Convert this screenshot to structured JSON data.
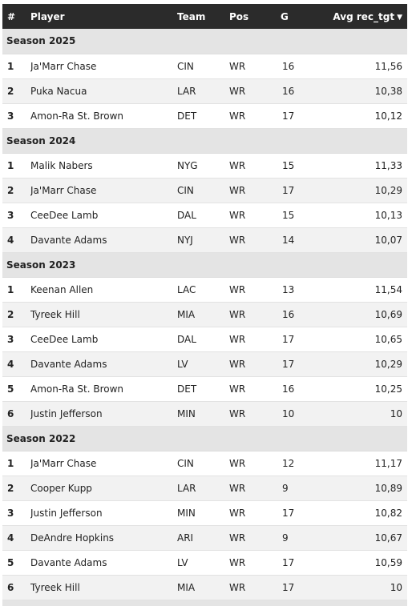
{
  "headers": {
    "rank": "#",
    "player": "Player",
    "team": "Team",
    "pos": "Pos",
    "g": "G",
    "avg": "Avg rec_tgt",
    "sort_icon": "sort-descending-icon"
  },
  "seasons": [
    {
      "label": "Season 2025",
      "rows": [
        {
          "rank": "1",
          "player": "Ja'Marr Chase",
          "team": "CIN",
          "pos": "WR",
          "g": "16",
          "avg": "11,56"
        },
        {
          "rank": "2",
          "player": "Puka Nacua",
          "team": "LAR",
          "pos": "WR",
          "g": "16",
          "avg": "10,38"
        },
        {
          "rank": "3",
          "player": "Amon-Ra St. Brown",
          "team": "DET",
          "pos": "WR",
          "g": "17",
          "avg": "10,12"
        }
      ]
    },
    {
      "label": "Season 2024",
      "rows": [
        {
          "rank": "1",
          "player": "Malik Nabers",
          "team": "NYG",
          "pos": "WR",
          "g": "15",
          "avg": "11,33"
        },
        {
          "rank": "2",
          "player": "Ja'Marr Chase",
          "team": "CIN",
          "pos": "WR",
          "g": "17",
          "avg": "10,29"
        },
        {
          "rank": "3",
          "player": "CeeDee Lamb",
          "team": "DAL",
          "pos": "WR",
          "g": "15",
          "avg": "10,13"
        },
        {
          "rank": "4",
          "player": "Davante Adams",
          "team": "NYJ",
          "pos": "WR",
          "g": "14",
          "avg": "10,07"
        }
      ]
    },
    {
      "label": "Season 2023",
      "rows": [
        {
          "rank": "1",
          "player": "Keenan Allen",
          "team": "LAC",
          "pos": "WR",
          "g": "13",
          "avg": "11,54"
        },
        {
          "rank": "2",
          "player": "Tyreek Hill",
          "team": "MIA",
          "pos": "WR",
          "g": "16",
          "avg": "10,69"
        },
        {
          "rank": "3",
          "player": "CeeDee Lamb",
          "team": "DAL",
          "pos": "WR",
          "g": "17",
          "avg": "10,65"
        },
        {
          "rank": "4",
          "player": "Davante Adams",
          "team": "LV",
          "pos": "WR",
          "g": "17",
          "avg": "10,29"
        },
        {
          "rank": "5",
          "player": "Amon-Ra St. Brown",
          "team": "DET",
          "pos": "WR",
          "g": "16",
          "avg": "10,25"
        },
        {
          "rank": "6",
          "player": "Justin Jefferson",
          "team": "MIN",
          "pos": "WR",
          "g": "10",
          "avg": "10"
        }
      ]
    },
    {
      "label": "Season 2022",
      "rows": [
        {
          "rank": "1",
          "player": "Ja'Marr Chase",
          "team": "CIN",
          "pos": "WR",
          "g": "12",
          "avg": "11,17"
        },
        {
          "rank": "2",
          "player": "Cooper Kupp",
          "team": "LAR",
          "pos": "WR",
          "g": "9",
          "avg": "10,89"
        },
        {
          "rank": "3",
          "player": "Justin Jefferson",
          "team": "MIN",
          "pos": "WR",
          "g": "17",
          "avg": "10,82"
        },
        {
          "rank": "4",
          "player": "DeAndre Hopkins",
          "team": "ARI",
          "pos": "WR",
          "g": "9",
          "avg": "10,67"
        },
        {
          "rank": "5",
          "player": "Davante Adams",
          "team": "LV",
          "pos": "WR",
          "g": "17",
          "avg": "10,59"
        },
        {
          "rank": "6",
          "player": "Tyreek Hill",
          "team": "MIA",
          "pos": "WR",
          "g": "17",
          "avg": "10"
        }
      ]
    },
    {
      "label": "",
      "rows": []
    }
  ]
}
